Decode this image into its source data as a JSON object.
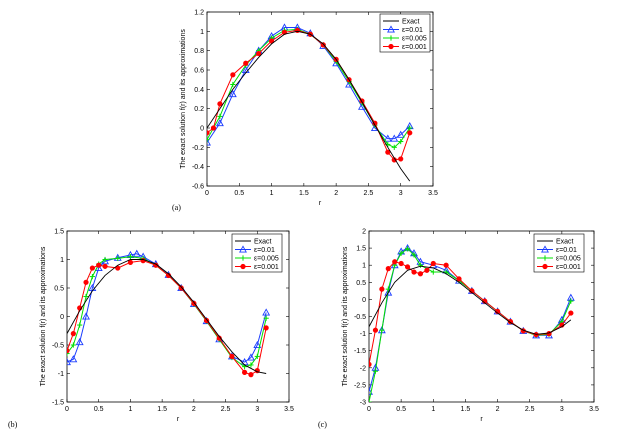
{
  "legend": [
    "Exact",
    "ε=0.01",
    "ε=0.005",
    "ε=0.001"
  ],
  "colors": {
    "exact": "#000000",
    "eps001": "#1a3cff",
    "eps0005": "#00e000",
    "eps0001": "#ff0000"
  },
  "chart_data": [
    {
      "type": "line",
      "panel_label": "(a)",
      "xlabel": "r",
      "ylabel": "The exact solution f(r) and its approximations",
      "xlim": [
        0,
        3.5
      ],
      "ylim": [
        -0.6,
        1.2
      ],
      "xticks": [
        "0",
        "0.5",
        "1",
        "1.5",
        "2",
        "2.5",
        "3",
        "3.5"
      ],
      "yticks": [
        "-0.6",
        "-0.4",
        "-0.2",
        "0",
        "0.2",
        "0.4",
        "0.6",
        "0.8",
        "1",
        "1.2"
      ],
      "grid": false,
      "legend_position": "top-right",
      "series": [
        {
          "name": "Exact",
          "x": [
            0,
            0.2,
            0.4,
            0.6,
            0.8,
            1.0,
            1.2,
            1.4,
            1.6,
            1.8,
            2.0,
            2.2,
            2.4,
            2.6,
            2.8,
            3.0,
            3.14
          ],
          "y": [
            0.0,
            0.2,
            0.4,
            0.57,
            0.73,
            0.87,
            0.97,
            1.0,
            0.97,
            0.87,
            0.71,
            0.5,
            0.27,
            0.03,
            -0.2,
            -0.42,
            -0.55
          ]
        },
        {
          "name": "ε=0.01",
          "x": [
            0,
            0.2,
            0.4,
            0.6,
            0.8,
            1.0,
            1.2,
            1.4,
            1.6,
            1.8,
            2.0,
            2.2,
            2.4,
            2.6,
            2.8,
            2.9,
            3.0,
            3.14
          ],
          "y": [
            -0.15,
            0.05,
            0.35,
            0.6,
            0.8,
            0.95,
            1.04,
            1.04,
            0.98,
            0.85,
            0.67,
            0.45,
            0.22,
            0.0,
            -0.11,
            -0.11,
            -0.07,
            0.02
          ]
        },
        {
          "name": "ε=0.005",
          "x": [
            0,
            0.2,
            0.4,
            0.6,
            0.8,
            1.0,
            1.2,
            1.4,
            1.6,
            1.8,
            2.0,
            2.2,
            2.4,
            2.6,
            2.8,
            2.9,
            3.0,
            3.14
          ],
          "y": [
            -0.12,
            0.12,
            0.45,
            0.65,
            0.8,
            0.93,
            1.01,
            1.02,
            0.97,
            0.86,
            0.69,
            0.48,
            0.26,
            0.03,
            -0.17,
            -0.2,
            -0.14,
            0.0
          ]
        },
        {
          "name": "ε=0.001",
          "x": [
            0,
            0.1,
            0.2,
            0.4,
            0.6,
            0.8,
            1.0,
            1.2,
            1.4,
            1.6,
            1.8,
            2.0,
            2.2,
            2.4,
            2.6,
            2.8,
            2.9,
            3.0,
            3.14
          ],
          "y": [
            -0.05,
            0.0,
            0.25,
            0.55,
            0.67,
            0.77,
            0.9,
            0.99,
            1.01,
            0.97,
            0.86,
            0.71,
            0.5,
            0.28,
            0.05,
            -0.25,
            -0.33,
            -0.32,
            -0.05
          ]
        }
      ]
    },
    {
      "type": "line",
      "panel_label": "(b)",
      "xlabel": "r",
      "ylabel": "The exact solution f(r) and its approximations",
      "xlim": [
        0,
        3.5
      ],
      "ylim": [
        -1.5,
        1.5
      ],
      "xticks": [
        "0",
        "0.5",
        "1",
        "1.5",
        "2",
        "2.5",
        "3",
        "3.5"
      ],
      "yticks": [
        "-1.5",
        "-1",
        "-0.5",
        "0",
        "0.5",
        "1",
        "1.5"
      ],
      "grid": false,
      "legend_position": "top-right",
      "series": [
        {
          "name": "Exact",
          "x": [
            0,
            0.2,
            0.4,
            0.6,
            0.8,
            1.0,
            1.2,
            1.4,
            1.6,
            1.8,
            2.0,
            2.2,
            2.4,
            2.6,
            2.8,
            3.0,
            3.14
          ],
          "y": [
            -0.3,
            0.1,
            0.45,
            0.72,
            0.9,
            1.0,
            1.0,
            0.92,
            0.75,
            0.52,
            0.25,
            -0.05,
            -0.35,
            -0.62,
            -0.85,
            -0.97,
            -1.0
          ]
        },
        {
          "name": "ε=0.01",
          "x": [
            0,
            0.1,
            0.2,
            0.3,
            0.4,
            0.5,
            0.6,
            0.8,
            1.0,
            1.1,
            1.2,
            1.4,
            1.6,
            1.8,
            2.0,
            2.2,
            2.4,
            2.6,
            2.8,
            2.9,
            3.0,
            3.14
          ],
          "y": [
            -0.8,
            -0.75,
            -0.45,
            0.0,
            0.5,
            0.85,
            0.97,
            1.03,
            1.08,
            1.1,
            1.05,
            0.92,
            0.73,
            0.5,
            0.22,
            -0.08,
            -0.4,
            -0.7,
            -0.8,
            -0.72,
            -0.5,
            0.07
          ]
        },
        {
          "name": "ε=0.005",
          "x": [
            0,
            0.1,
            0.2,
            0.3,
            0.4,
            0.5,
            0.6,
            0.8,
            1.0,
            1.2,
            1.4,
            1.6,
            1.8,
            2.0,
            2.2,
            2.4,
            2.6,
            2.8,
            2.9,
            3.0,
            3.14
          ],
          "y": [
            -0.65,
            -0.5,
            -0.15,
            0.35,
            0.7,
            0.92,
            1.0,
            1.02,
            1.05,
            1.02,
            0.9,
            0.72,
            0.5,
            0.22,
            -0.08,
            -0.4,
            -0.72,
            -0.88,
            -0.85,
            -0.7,
            -0.03
          ]
        },
        {
          "name": "ε=0.001",
          "x": [
            0,
            0.1,
            0.2,
            0.3,
            0.4,
            0.5,
            0.6,
            0.8,
            1.0,
            1.2,
            1.4,
            1.6,
            1.8,
            2.0,
            2.2,
            2.4,
            2.6,
            2.8,
            2.9,
            3.0,
            3.14
          ],
          "y": [
            -0.6,
            -0.3,
            0.15,
            0.6,
            0.85,
            0.9,
            0.88,
            0.85,
            0.95,
            0.98,
            0.9,
            0.72,
            0.5,
            0.23,
            -0.07,
            -0.38,
            -0.7,
            -0.98,
            -1.02,
            -0.95,
            -0.2
          ]
        }
      ]
    },
    {
      "type": "line",
      "panel_label": "(c)",
      "xlabel": "r",
      "ylabel": "The exact solution f(r) and its approximations",
      "xlim": [
        0,
        3.5
      ],
      "ylim": [
        -3,
        2
      ],
      "xticks": [
        "0",
        "0.5",
        "1",
        "1.5",
        "2",
        "2.5",
        "3",
        "3.5"
      ],
      "yticks": [
        "-3",
        "-2.5",
        "-2",
        "-1.5",
        "-1",
        "-0.5",
        "0",
        "0.5",
        "1",
        "1.5",
        "2"
      ],
      "grid": false,
      "legend_position": "top-right",
      "series": [
        {
          "name": "Exact",
          "x": [
            0,
            0.2,
            0.4,
            0.6,
            0.8,
            1.0,
            1.2,
            1.4,
            1.6,
            1.8,
            2.0,
            2.2,
            2.4,
            2.6,
            2.8,
            3.0,
            3.14
          ],
          "y": [
            -0.8,
            -0.1,
            0.5,
            0.85,
            0.97,
            0.92,
            0.75,
            0.5,
            0.2,
            -0.1,
            -0.4,
            -0.68,
            -0.9,
            -1.02,
            -0.98,
            -0.8,
            -0.6
          ]
        },
        {
          "name": "ε=0.01",
          "x": [
            0,
            0.1,
            0.2,
            0.3,
            0.4,
            0.5,
            0.6,
            0.7,
            0.8,
            1.0,
            1.2,
            1.4,
            1.6,
            1.8,
            2.0,
            2.2,
            2.4,
            2.6,
            2.8,
            3.0,
            3.14
          ],
          "y": [
            -2.7,
            -2.0,
            -0.9,
            0.2,
            1.0,
            1.4,
            1.5,
            1.35,
            1.1,
            1.0,
            0.85,
            0.55,
            0.25,
            -0.05,
            -0.35,
            -0.65,
            -0.92,
            -1.05,
            -1.05,
            -0.6,
            0.05
          ]
        },
        {
          "name": "ε=0.005",
          "x": [
            0,
            0.1,
            0.2,
            0.3,
            0.4,
            0.5,
            0.6,
            0.7,
            0.8,
            1.0,
            1.2,
            1.4,
            1.6,
            1.8,
            2.0,
            2.2,
            2.4,
            2.6,
            2.8,
            3.0,
            3.14
          ],
          "y": [
            -3.0,
            -2.1,
            -0.9,
            0.3,
            1.0,
            1.35,
            1.48,
            1.3,
            1.0,
            0.8,
            0.8,
            0.55,
            0.25,
            -0.05,
            -0.35,
            -0.65,
            -0.92,
            -1.05,
            -1.02,
            -0.65,
            -0.05
          ]
        },
        {
          "name": "ε=0.001",
          "x": [
            0,
            0.1,
            0.2,
            0.3,
            0.4,
            0.5,
            0.6,
            0.7,
            0.8,
            0.9,
            1.0,
            1.2,
            1.4,
            1.6,
            1.8,
            2.0,
            2.2,
            2.4,
            2.6,
            2.8,
            3.0,
            3.14
          ],
          "y": [
            -1.9,
            -0.9,
            0.3,
            0.9,
            1.1,
            1.05,
            0.95,
            0.8,
            0.75,
            0.85,
            1.05,
            1.0,
            0.6,
            0.25,
            -0.05,
            -0.35,
            -0.65,
            -0.92,
            -1.03,
            -1.0,
            -0.75,
            -0.4
          ]
        }
      ]
    }
  ]
}
